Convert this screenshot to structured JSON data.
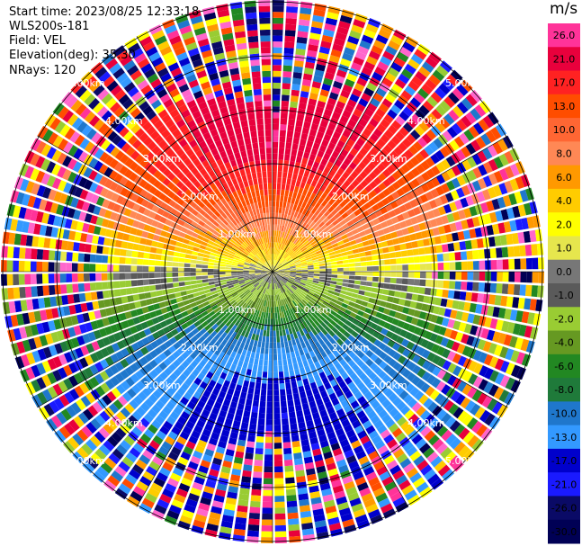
{
  "header": {
    "start_time": "Start time: 2023/08/25 12:33:18",
    "instrument": "WLS200s-181",
    "field": "Field: VEL",
    "elevation": "Elevation(deg): 35.30",
    "nrays": "NRays: 120"
  },
  "chart_data": {
    "type": "heatmap",
    "projection": "polar (PPI)",
    "field": "VEL",
    "units": "m/s",
    "nrays": 120,
    "range_rings_labels": [
      "1.00km",
      "2.00km",
      "3.00km",
      "4.00km",
      "5.00km"
    ],
    "range_rings_km": [
      1,
      2,
      3,
      4,
      5
    ],
    "colorbar": {
      "label": "m/s",
      "ticks": [
        "26.0",
        "21.0",
        "17.0",
        "13.0",
        "10.0",
        "8.0",
        "6.0",
        "4.0",
        "2.0",
        "1.0",
        "0.0",
        "-1.0",
        "-2.0",
        "-4.0",
        "-6.0",
        "-8.0",
        "-10.0",
        "-13.0",
        "-17.0",
        "-21.0",
        "-26.0",
        "-30.0"
      ],
      "colors": [
        "#ff3399",
        "#e8003c",
        "#ff2222",
        "#ff4d00",
        "#ff6633",
        "#ff8855",
        "#ff9900",
        "#ffcc00",
        "#ffff00",
        "#e6e64d",
        "#777777",
        "#5a5a5a",
        "#99cc33",
        "#669922",
        "#228822",
        "#1f7a3a",
        "#1f77cc",
        "#3399ff",
        "#0000cc",
        "#1a1aff",
        "#0a0a66",
        "#000055"
      ]
    },
    "velocity_pattern": "positive (warm colors) toward top, negative (green/blue) toward bottom, noise at outer ranges"
  }
}
